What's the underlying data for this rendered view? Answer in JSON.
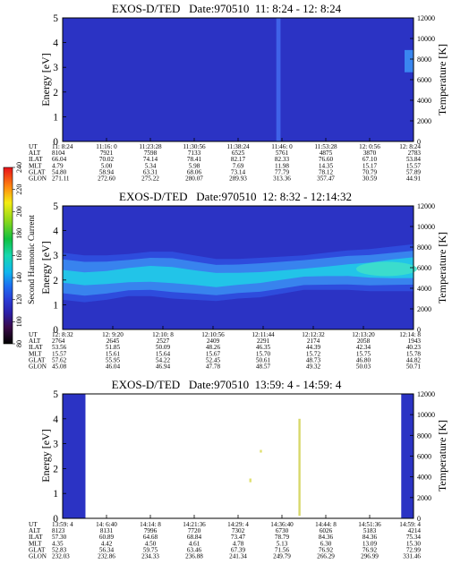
{
  "colorbar": {
    "label": "Second Harmonic Current",
    "ticks": [
      "240",
      "220",
      "200",
      "180",
      "160",
      "140",
      "120",
      "100",
      "80"
    ],
    "stops": [
      {
        "value": 80,
        "color": "#000000"
      },
      {
        "value": 95,
        "color": "#3a0a4a"
      },
      {
        "value": 108,
        "color": "#2b1fa8"
      },
      {
        "value": 120,
        "color": "#2a3cd6"
      },
      {
        "value": 132,
        "color": "#1e6cf0"
      },
      {
        "value": 145,
        "color": "#10b6ee"
      },
      {
        "value": 160,
        "color": "#16d8b0"
      },
      {
        "value": 175,
        "color": "#10c040"
      },
      {
        "value": 192,
        "color": "#8ed81a"
      },
      {
        "value": 208,
        "color": "#f4ec14"
      },
      {
        "value": 222,
        "color": "#ff8a10"
      },
      {
        "value": 240,
        "color": "#e8101a"
      }
    ]
  },
  "chart_data": [
    {
      "type": "heatmap",
      "title": "EXOS-D/TED   Date:970510  11: 8:24 - 12: 8:24",
      "ylabel": "Energy [eV]",
      "ylabel_right": "Temperature [K]",
      "ylim": [
        0,
        5
      ],
      "ylim_right": [
        0,
        12000
      ],
      "y_ticks": [
        "0",
        "1",
        "2",
        "3",
        "4",
        "5"
      ],
      "y_ticks_right": [
        "0",
        "2000",
        "4000",
        "6000",
        "8000",
        "10000",
        "12000"
      ],
      "background_color": "#2b33c4",
      "features": [
        {
          "kind": "vertical-stripe",
          "x_fraction": 0.615,
          "width_fraction": 0.012,
          "color": "#3f62e8"
        },
        {
          "kind": "hot-edge",
          "x_fraction": 1.0,
          "y_from": 2.8,
          "y_to": 3.7,
          "color": "#3a86f0"
        }
      ],
      "row_labels": [
        "UT",
        "ALT",
        "ILAT",
        "MLT",
        "GLAT",
        "GLON"
      ],
      "columns": [
        [
          "11: 8:24",
          "8104",
          "66.04",
          "4.79",
          "54.80",
          "271.11"
        ],
        [
          "11:16: 0",
          "7921",
          "70.02",
          "5.00",
          "58.94",
          "272.60"
        ],
        [
          "11:23:28",
          "7598",
          "74.14",
          "5.34",
          "63.31",
          "275.22"
        ],
        [
          "11:30:56",
          "7133",
          "78.41",
          "5.98",
          "68.06",
          "280.07"
        ],
        [
          "11:38:24",
          "6525",
          "82.17",
          "7.69",
          "73.14",
          "289.93"
        ],
        [
          "11:46: 0",
          "5761",
          "82.33",
          "11.98",
          "77.79",
          "313.36"
        ],
        [
          "11:53:28",
          "4875",
          "76.60",
          "14.35",
          "78.12",
          "357.47"
        ],
        [
          "12: 0:56",
          "3870",
          "67.10",
          "15.17",
          "70.79",
          "30.59"
        ],
        [
          "12: 8:24",
          "2783",
          "53.84",
          "15.57",
          "57.89",
          "44.91"
        ]
      ]
    },
    {
      "type": "heatmap",
      "title": "EXOS-D/TED   Date:970510  12: 8:32 - 12:14:32",
      "ylabel": "Energy [eV]",
      "ylabel_right": "Temperature [K]",
      "ylim": [
        0,
        5
      ],
      "ylim_right": [
        0,
        12000
      ],
      "y_ticks": [
        "0",
        "1",
        "2",
        "3",
        "4",
        "5"
      ],
      "y_ticks_right": [
        "0",
        "2000",
        "4000",
        "6000",
        "8000",
        "10000",
        "12000"
      ],
      "background_color": "#2b33c4",
      "band": {
        "center": [
          2.15,
          2.05,
          2.1,
          2.2,
          2.25,
          2.2,
          2.1,
          2.0,
          2.05,
          2.1,
          2.2,
          2.3,
          2.35,
          2.4,
          2.4,
          2.45,
          2.5
        ],
        "halfwidth": [
          0.95,
          0.95,
          0.9,
          0.85,
          0.9,
          0.95,
          0.9,
          0.85,
          0.8,
          0.8,
          0.75,
          0.7,
          0.75,
          0.8,
          0.85,
          0.9,
          0.95
        ],
        "peak": [
          0.55,
          0.55,
          0.6,
          0.7,
          0.75,
          0.72,
          0.68,
          0.7,
          0.62,
          0.55,
          0.5,
          0.45,
          0.5,
          0.6,
          0.75,
          0.9,
          0.95
        ],
        "outer_color": "#2f4fe0",
        "mid_color": "#3a8af0",
        "core_color": "#22c4e8"
      },
      "row_labels": [
        "UT",
        "ALT",
        "ILAT",
        "MLT",
        "GLAT",
        "GLON"
      ],
      "columns": [
        [
          "12: 8:32",
          "2764",
          "53.56",
          "15.57",
          "57.62",
          "45.08"
        ],
        [
          "12: 9:20",
          "2645",
          "51.85",
          "15.61",
          "55.95",
          "46.04"
        ],
        [
          "12:10: 8",
          "2527",
          "50.09",
          "15.64",
          "54.22",
          "46.94"
        ],
        [
          "12:10:56",
          "2409",
          "48.26",
          "15.67",
          "52.45",
          "47.78"
        ],
        [
          "12:11:44",
          "2291",
          "46.35",
          "15.70",
          "50.61",
          "48.57"
        ],
        [
          "12:12:32",
          "2174",
          "44.39",
          "15.72",
          "48.73",
          "49.32"
        ],
        [
          "12:13:20",
          "2058",
          "42.34",
          "15.75",
          "46.80",
          "50.03"
        ],
        [
          "12:14: 8",
          "1943",
          "40.23",
          "15.78",
          "44.82",
          "50.71"
        ]
      ]
    },
    {
      "type": "heatmap",
      "title": "EXOS-D/TED   Date:970510  13:59: 4 - 14:59: 4",
      "ylabel": "Energy [eV]",
      "ylabel_right": "Temperature [K]",
      "ylim": [
        0,
        5
      ],
      "ylim_right": [
        0,
        12000
      ],
      "y_ticks": [
        "0",
        "1",
        "2",
        "3",
        "4",
        "5"
      ],
      "y_ticks_right": [
        "0",
        "2000",
        "4000",
        "6000",
        "8000",
        "10000",
        "12000"
      ],
      "background_color": "#2b33c4",
      "blank_interval": [
        0.065,
        0.965
      ],
      "blank_color": "#ffffff",
      "features": [
        {
          "kind": "spike",
          "x_fraction": 0.675,
          "y_from": 0.1,
          "y_to": 4.0,
          "color": "#d8d86a"
        },
        {
          "kind": "spike",
          "x_fraction": 0.565,
          "y_from": 2.65,
          "y_to": 2.75,
          "color": "#e0e070"
        },
        {
          "kind": "spike",
          "x_fraction": 0.535,
          "y_from": 1.45,
          "y_to": 1.6,
          "color": "#e0e070"
        }
      ],
      "row_labels": [
        "UT",
        "ALT",
        "ILAT",
        "MLT",
        "GLAT",
        "GLON"
      ],
      "columns": [
        [
          "13:59: 4",
          "8123",
          "57.30",
          "4.35",
          "52.83",
          "232.03"
        ],
        [
          "14: 6:40",
          "8131",
          "60.89",
          "4.42",
          "56.34",
          "232.86"
        ],
        [
          "14:14: 8",
          "7996",
          "64.68",
          "4.50",
          "59.75",
          "234.33"
        ],
        [
          "14:21:36",
          "7720",
          "68.84",
          "4.61",
          "63.46",
          "236.88"
        ],
        [
          "14:29: 4",
          "7302",
          "73.47",
          "4.78",
          "67.39",
          "241.34"
        ],
        [
          "14:36:40",
          "6730",
          "78.79",
          "5.13",
          "71.56",
          "249.79"
        ],
        [
          "14:44: 8",
          "6026",
          "84.36",
          "6.30",
          "76.92",
          "266.29"
        ],
        [
          "14:51:36",
          "5183",
          "84.36",
          "13.09",
          "76.92",
          "296.99"
        ],
        [
          "14:59: 4",
          "4214",
          "75.34",
          "15.30",
          "72.99",
          "331.46"
        ]
      ]
    }
  ]
}
